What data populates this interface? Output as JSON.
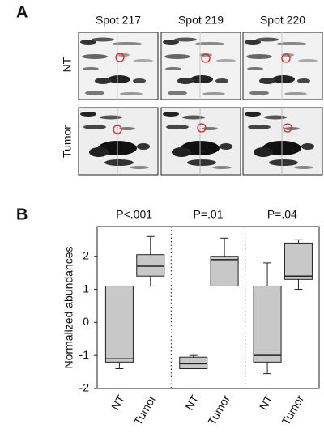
{
  "panel_a": {
    "label": "A",
    "columns": [
      "Spot 217",
      "Spot 219",
      "Spot 220"
    ],
    "rows": [
      "NT",
      "Tumor"
    ]
  },
  "chart_data": {
    "type": "box",
    "panel_label": "B",
    "ylabel": "Normalized abundances",
    "ylim": [
      -2,
      2.9
    ],
    "yticks": [
      -2,
      -1,
      0,
      1,
      2
    ],
    "color": "#c8c8c8",
    "groups": [
      {
        "label": "P<.001",
        "categories": [
          "NT",
          "Tumor"
        ],
        "boxes": [
          {
            "min": -1.4,
            "q1": -1.2,
            "median": -1.1,
            "q3": 1.1,
            "max": 1.1
          },
          {
            "min": 1.1,
            "q1": 1.4,
            "median": 1.7,
            "q3": 2.05,
            "max": 2.6
          }
        ]
      },
      {
        "label": "P=.01",
        "categories": [
          "NT",
          "Tumor"
        ],
        "boxes": [
          {
            "min": -1.4,
            "q1": -1.4,
            "median": -1.25,
            "q3": -1.05,
            "max": -1.0
          },
          {
            "min": 1.1,
            "q1": 1.1,
            "median": 1.9,
            "q3": 2.0,
            "max": 2.55
          }
        ]
      },
      {
        "label": "P=.04",
        "categories": [
          "NT",
          "Tumor"
        ],
        "boxes": [
          {
            "min": -1.55,
            "q1": -1.2,
            "median": -1.0,
            "q3": 1.1,
            "max": 1.8
          },
          {
            "min": 1.0,
            "q1": 1.3,
            "median": 1.4,
            "q3": 2.4,
            "max": 2.5
          }
        ]
      }
    ]
  }
}
